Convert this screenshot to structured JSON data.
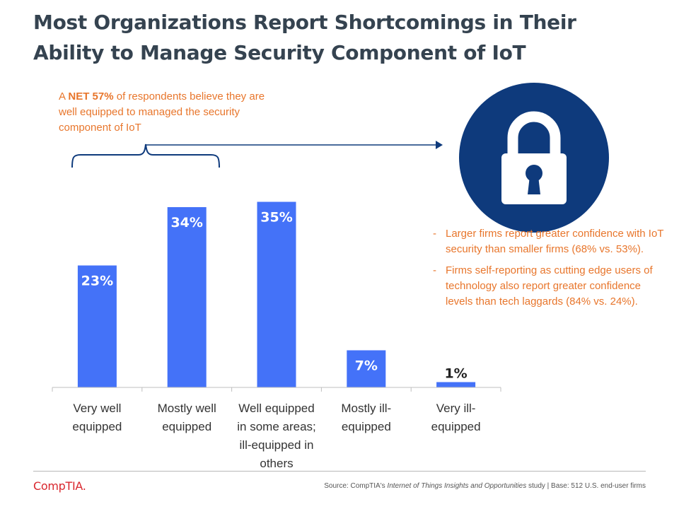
{
  "title": {
    "line1": "Most Organizations Report Shortcomings in Their",
    "line2": "Ability to Manage Security Component of IoT"
  },
  "net_note": {
    "prefix": "A ",
    "highlight": "NET 57%",
    "suffix": " of respondents believe they are well equipped to managed the security component of IoT"
  },
  "bullets": [
    {
      "dash": "-",
      "text": "Larger firms report greater confidence with IoT security than smaller firms (68% vs. 53%)."
    },
    {
      "dash": "-",
      "text": "Firms self-reporting as cutting edge users of technology also report greater confidence levels than tech laggards (84% vs. 24%)."
    }
  ],
  "lock_icon": "lock-icon",
  "chart_data": {
    "type": "bar",
    "title": "",
    "xlabel": "",
    "ylabel": "",
    "ylim": [
      0,
      40
    ],
    "grid": false,
    "legend": "none",
    "categories": [
      "Very well equipped",
      "Mostly well equipped",
      "Well equipped in some areas; ill-equipped in others",
      "Mostly ill-equipped",
      "Very ill-equipped"
    ],
    "category_lines": [
      [
        "Very well",
        "equipped"
      ],
      [
        "Mostly well",
        "equipped"
      ],
      [
        "Well equipped",
        "in some areas;",
        "ill-equipped in",
        "others"
      ],
      [
        "Mostly ill-",
        "equipped"
      ],
      [
        "Very ill-",
        "equipped"
      ]
    ],
    "values": [
      23,
      34,
      35,
      7,
      1
    ],
    "value_labels": [
      "23%",
      "34%",
      "35%",
      "7%",
      "1%"
    ]
  },
  "footer": {
    "logo": "CompTIA.",
    "source_prefix": "Source: CompTIA's ",
    "source_study": "Internet of Things Insights and Opportunities",
    "source_suffix": " study | Base: 512 U.S. end-user firms"
  },
  "colors": {
    "bar": "#4472f8",
    "title": "#354350",
    "accent_orange": "#e8762c",
    "lock_circle": "#0e3a7c",
    "connector": "#0e3a7c",
    "logo": "#d9272e"
  }
}
